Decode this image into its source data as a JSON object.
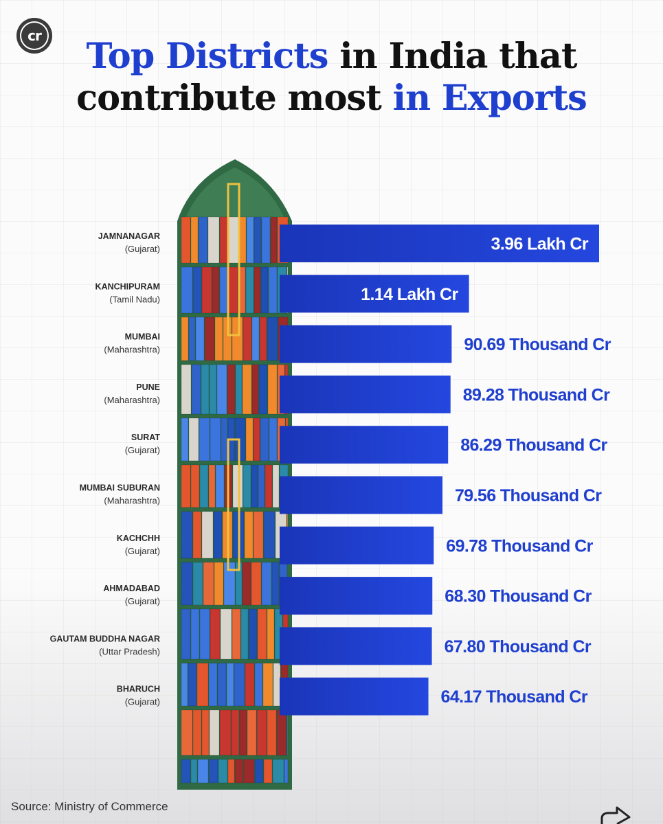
{
  "logo": {
    "text": "cr"
  },
  "title": {
    "part1": "Top Districts",
    "part2": " in India that",
    "part3": "contribute most ",
    "part4": "in Exports"
  },
  "source": "Source: Ministry of Commerce",
  "colors": {
    "bar": "#1e3fd2",
    "accent": "#1f3fcf",
    "hull": "#2f6a45"
  },
  "chart_data": {
    "type": "bar",
    "orientation": "horizontal",
    "unit": "₹ Crore",
    "categories": [
      "JAMNANAGAR",
      "KANCHIPURAM",
      "MUMBAI",
      "PUNE",
      "SURAT",
      "MUMBAI SUBURAN",
      "KACHCHH",
      "AHMADABAD",
      "GAUTAM BUDDHA NAGAR",
      "BHARUCH"
    ],
    "states": [
      "(Gujarat)",
      "(Tamil Nadu)",
      "(Maharashtra)",
      "(Maharashtra)",
      "(Gujarat)",
      "(Maharashtra)",
      "(Gujarat)",
      "(Gujarat)",
      "(Uttar Pradesh)",
      "(Gujarat)"
    ],
    "values": [
      396000,
      114000,
      90690,
      89280,
      86290,
      79560,
      69780,
      68300,
      67800,
      64170
    ],
    "labels": [
      "3.96 Lakh Cr",
      "1.14 Lakh Cr",
      "90.69 Thousand Cr",
      "89.28 Thousand Cr",
      "86.29 Thousand Cr",
      "79.56 Thousand Cr",
      "69.78 Thousand Cr",
      "68.30 Thousand Cr",
      "67.80 Thousand Cr",
      "64.17 Thousand Cr"
    ],
    "title": "Top Districts in India that contribute most in Exports",
    "xlabel": "",
    "ylabel": "",
    "grid": true,
    "legend": "none"
  }
}
